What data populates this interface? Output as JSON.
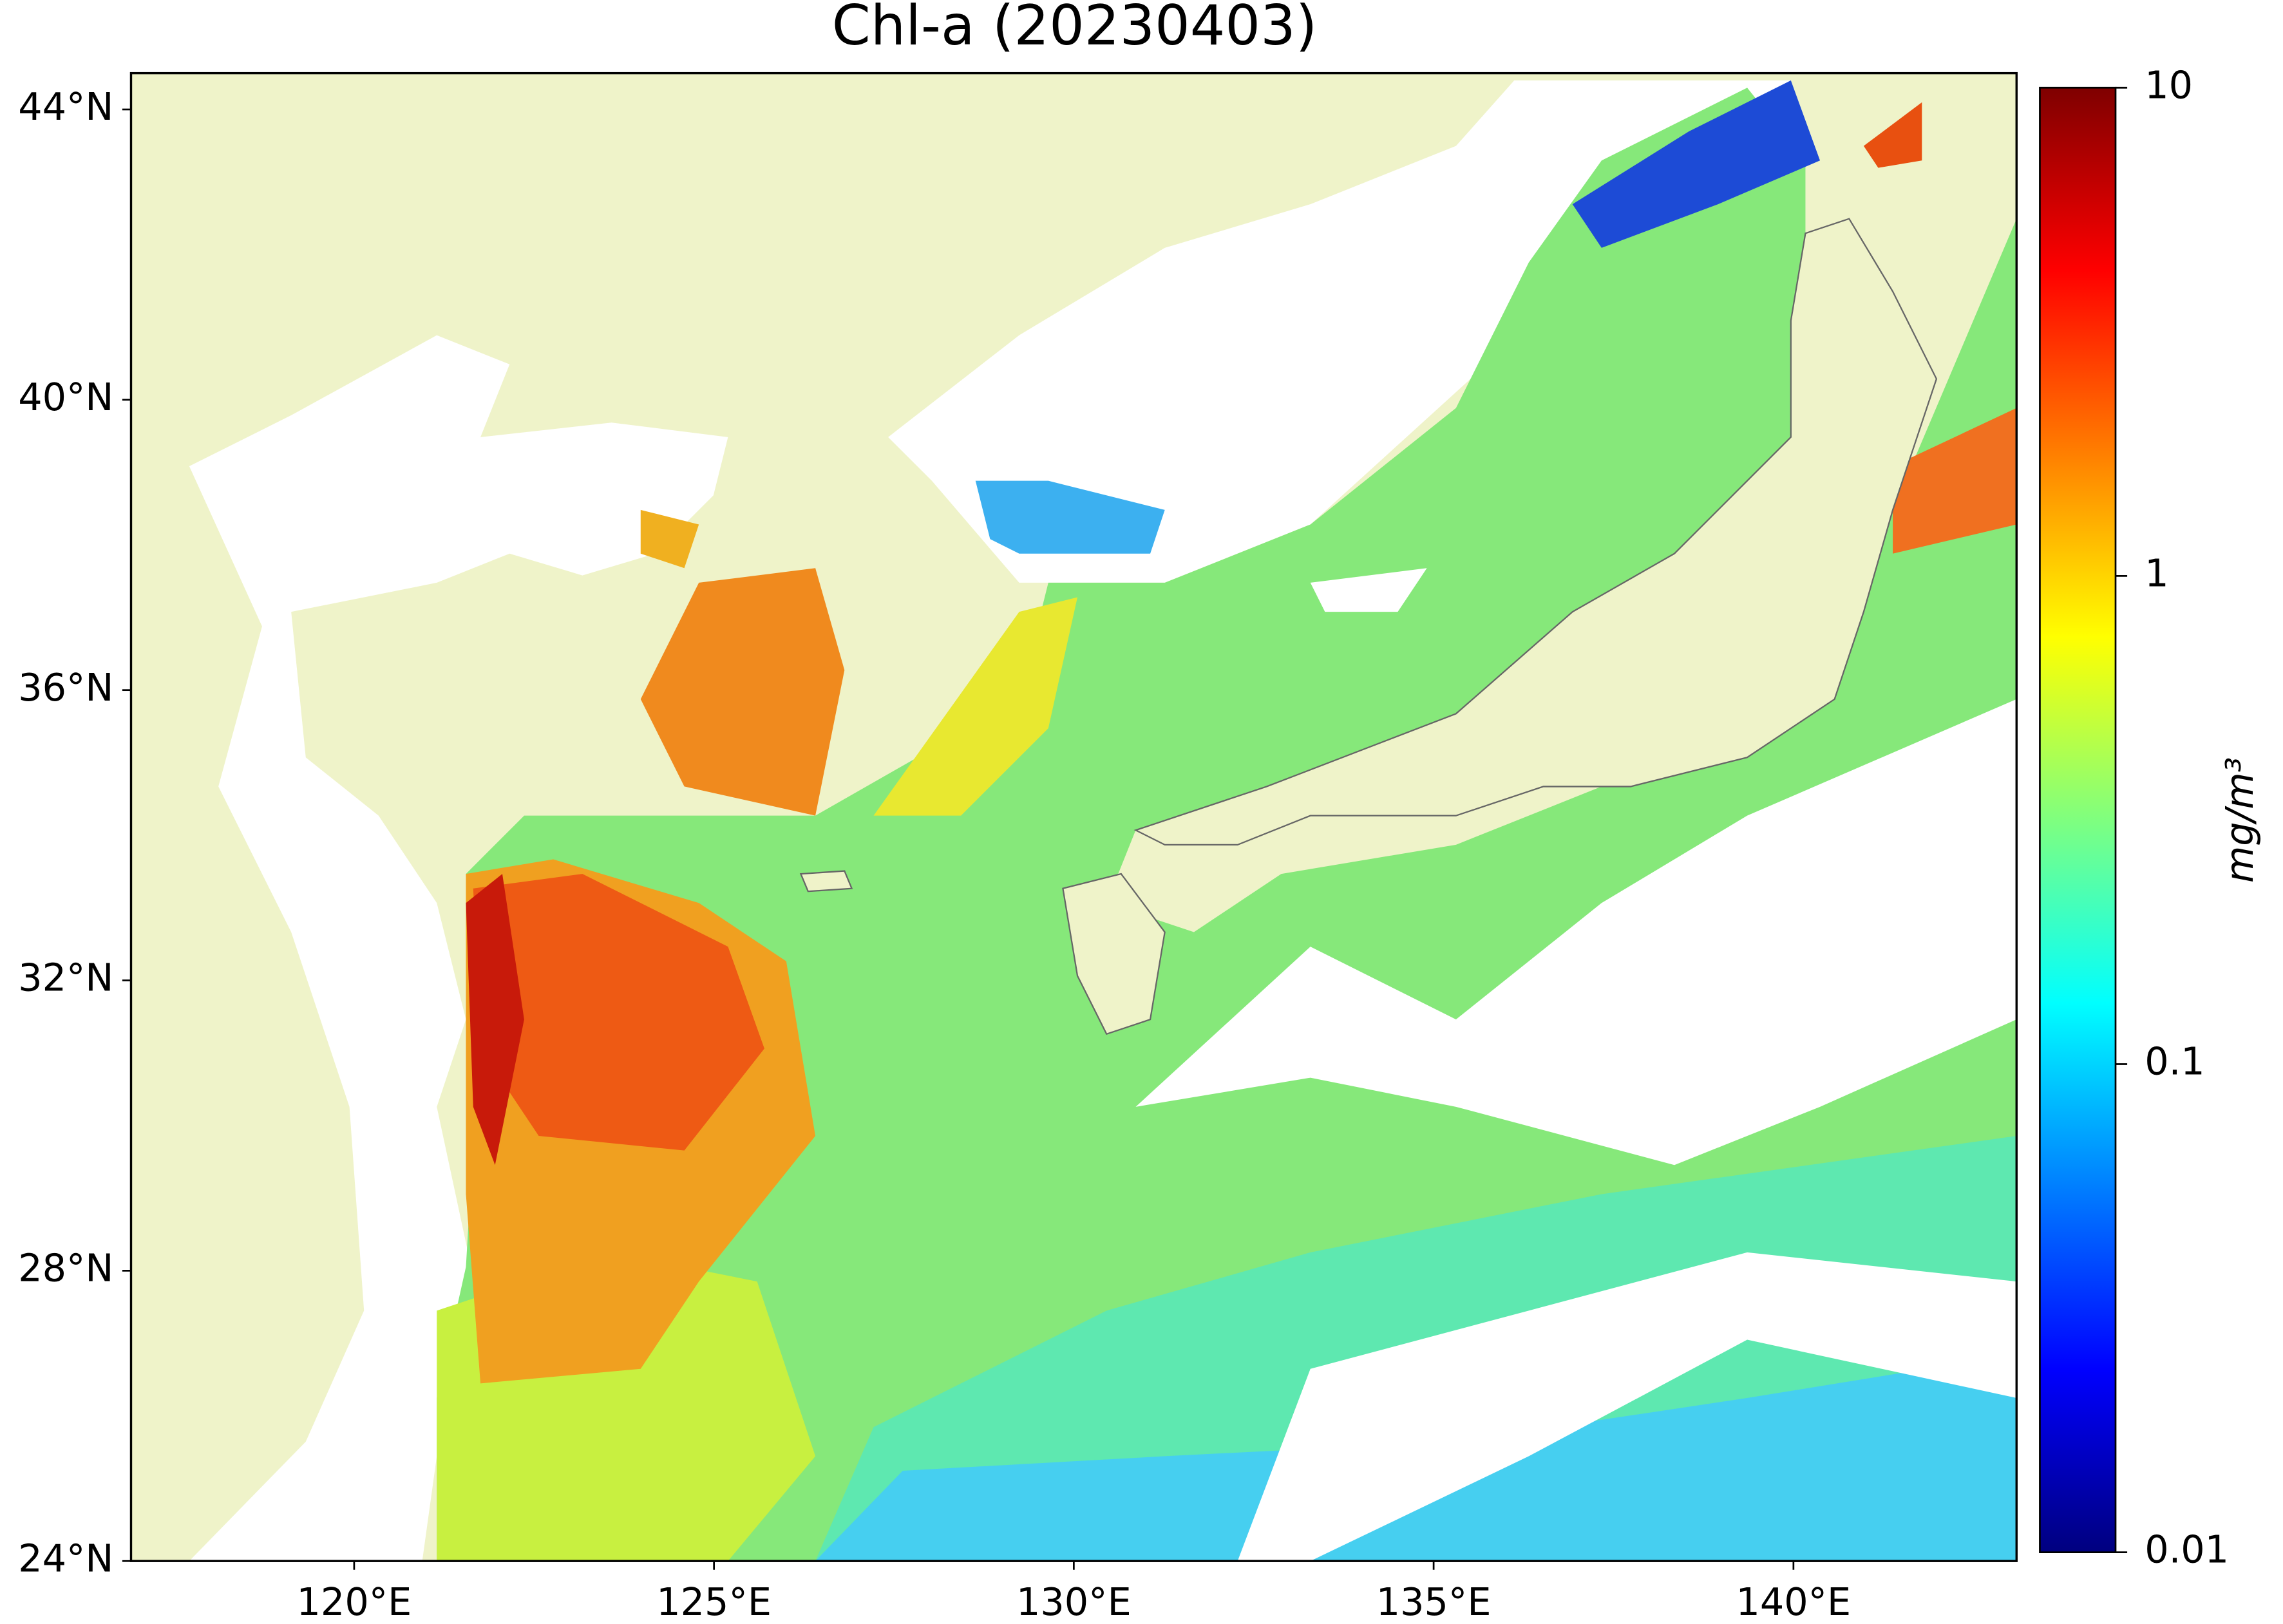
{
  "chart_data": {
    "type": "map",
    "title": "Chl-a (20230403)",
    "xlim": [
      116.9,
      143.1
    ],
    "ylim": [
      24,
      44.5
    ],
    "xticks": [
      {
        "value": 120,
        "label": "120°E"
      },
      {
        "value": 125,
        "label": "125°E"
      },
      {
        "value": 130,
        "label": "130°E"
      },
      {
        "value": 135,
        "label": "135°E"
      },
      {
        "value": 140,
        "label": "140°E"
      }
    ],
    "yticks": [
      {
        "value": 24,
        "label": "24°N"
      },
      {
        "value": 28,
        "label": "28°N"
      },
      {
        "value": 32,
        "label": "32°N"
      },
      {
        "value": 36,
        "label": "36°N"
      },
      {
        "value": 40,
        "label": "40°N"
      },
      {
        "value": 44,
        "label": "44°N"
      }
    ],
    "land_color": "#eff3c9",
    "colorbar": {
      "label": "mg/m³",
      "scale": "log",
      "lim": [
        0.01,
        10
      ],
      "ticks": [
        0.01,
        0.1,
        1,
        10
      ],
      "colors": [
        "#00007f",
        "#0000ff",
        "#007fff",
        "#00ffff",
        "#7fff7f",
        "#ffff00",
        "#ff7f00",
        "#ff0000",
        "#7f0000"
      ]
    }
  }
}
